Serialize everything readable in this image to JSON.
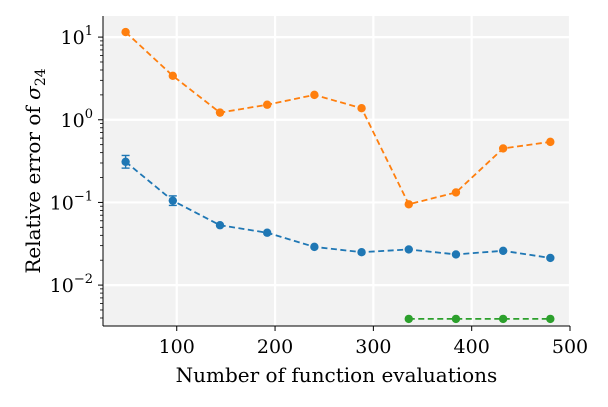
{
  "chart_data": {
    "type": "line",
    "xlabel": "Number of function evaluations",
    "ylabel_prefix": "Relative error of ",
    "ylabel_symbol": "σ",
    "ylabel_subscript": "24",
    "xscale": "linear",
    "yscale": "log",
    "xlim": [
      25,
      500
    ],
    "ylim": [
      0.0032,
      18
    ],
    "xticks": [
      100,
      200,
      300,
      400,
      500
    ],
    "xtick_labels": [
      "100",
      "200",
      "300",
      "400",
      "500"
    ],
    "yticks": [
      0.01,
      0.1,
      1,
      10
    ],
    "ytick_labels": [
      {
        "base": "10",
        "exp": "−2"
      },
      {
        "base": "10",
        "exp": "−1"
      },
      {
        "base": "10",
        "exp": "0"
      },
      {
        "base": "10",
        "exp": "1"
      }
    ],
    "grid": true,
    "background": "#f2f2f2",
    "series": [
      {
        "color": "#ff7f0e",
        "linestyle": "dashed",
        "x": [
          48,
          96,
          144,
          192,
          240,
          288,
          336,
          384,
          432,
          480
        ],
        "y": [
          11.5,
          3.4,
          1.22,
          1.52,
          2.0,
          1.38,
          0.095,
          0.132,
          0.45,
          0.54
        ]
      },
      {
        "color": "#1f77b4",
        "linestyle": "dashed",
        "x": [
          48,
          96,
          144,
          192,
          240,
          288,
          336,
          384,
          432,
          480
        ],
        "y": [
          0.31,
          0.105,
          0.053,
          0.043,
          0.029,
          0.025,
          0.027,
          0.0235,
          0.026,
          0.0213
        ],
        "yerr_low": [
          0.26,
          0.092,
          null,
          null,
          null,
          null,
          null,
          null,
          null,
          null
        ],
        "yerr_high": [
          0.37,
          0.12,
          null,
          null,
          null,
          null,
          null,
          null,
          null,
          null
        ]
      },
      {
        "color": "#2ca02c",
        "linestyle": "dashed",
        "x": [
          336,
          384,
          432,
          480
        ],
        "y": [
          0.0039,
          0.0039,
          0.0039,
          0.0039
        ]
      }
    ]
  }
}
